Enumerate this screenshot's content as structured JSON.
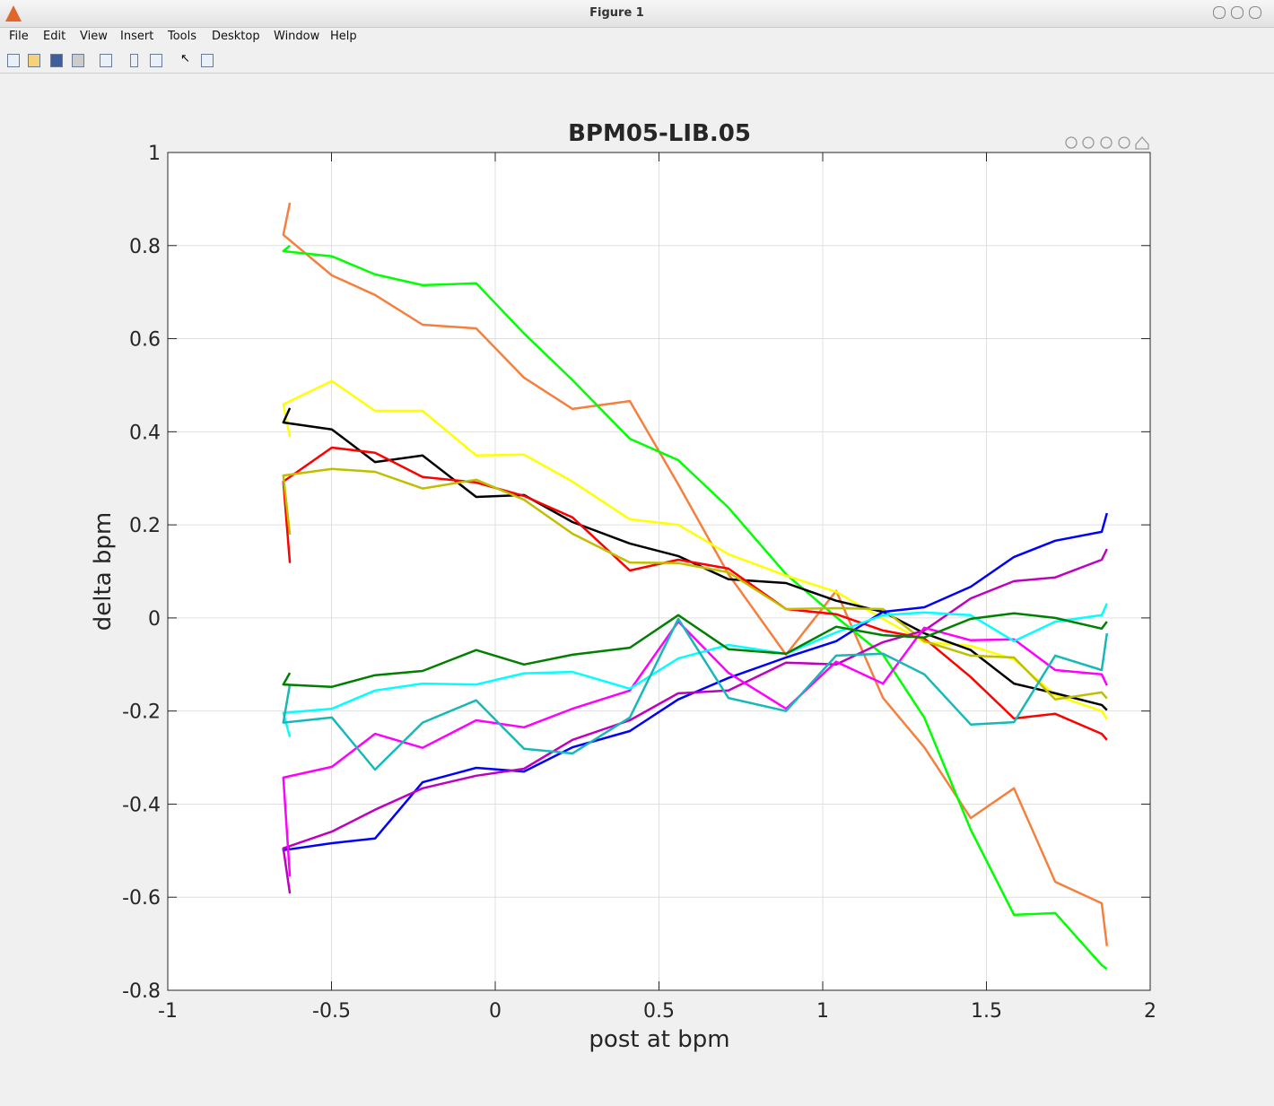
{
  "window": {
    "title": "Figure 1",
    "menu": [
      "File",
      "Edit",
      "View",
      "Insert",
      "Tools",
      "Desktop",
      "Window",
      "Help"
    ]
  },
  "chart_data": {
    "type": "line",
    "title": "BPM05-LIB.05",
    "x_label": "post at bpm",
    "y_label": "delta bpm",
    "x": [
      -0.627,
      -0.647,
      -0.499,
      -0.367,
      -0.222,
      -0.058,
      0.088,
      0.236,
      0.411,
      0.559,
      0.712,
      0.888,
      1.041,
      1.184,
      1.31,
      1.452,
      1.584,
      1.71,
      1.852,
      1.868
    ],
    "xlim": [
      -1,
      2
    ],
    "xticks": [
      -1,
      -0.5,
      0,
      0.5,
      1,
      1.5,
      2
    ],
    "ylim": [
      -0.8,
      1
    ],
    "yticks": [
      -0.8,
      -0.6,
      -0.4,
      -0.2,
      0,
      0.2,
      0.4,
      0.6,
      0.8,
      1
    ],
    "grid": true,
    "series": [
      {
        "color": "#f5803e",
        "values": [
          0.892,
          0.823,
          0.736,
          0.694,
          0.63,
          0.622,
          0.516,
          0.449,
          0.466,
          0.287,
          0.094,
          -0.079,
          0.058,
          -0.172,
          -0.278,
          -0.43,
          -0.366,
          -0.567,
          -0.613,
          -0.705
        ]
      },
      {
        "color": "#00ff00",
        "values": [
          0.8,
          0.788,
          0.777,
          0.738,
          0.715,
          0.719,
          0.611,
          0.511,
          0.385,
          0.339,
          0.237,
          0.094,
          0.002,
          -0.079,
          -0.214,
          -0.455,
          -0.638,
          -0.634,
          -0.746,
          -0.754
        ]
      },
      {
        "color": "#ffff00",
        "values": [
          0.389,
          0.459,
          0.509,
          0.445,
          0.445,
          0.349,
          0.351,
          0.293,
          0.212,
          0.2,
          0.137,
          0.091,
          0.056,
          -0.002,
          -0.052,
          -0.06,
          -0.089,
          -0.166,
          -0.2,
          -0.218
        ]
      },
      {
        "color": "#000000",
        "values": [
          0.451,
          0.42,
          0.405,
          0.335,
          0.349,
          0.26,
          0.264,
          0.206,
          0.16,
          0.133,
          0.083,
          0.075,
          0.037,
          0.013,
          -0.033,
          -0.069,
          -0.141,
          -0.162,
          -0.187,
          -0.198
        ]
      },
      {
        "color": "#ff0000",
        "values": [
          0.118,
          0.293,
          0.366,
          0.355,
          0.303,
          0.291,
          0.262,
          0.216,
          0.102,
          0.125,
          0.106,
          0.019,
          0.008,
          -0.027,
          -0.044,
          -0.127,
          -0.216,
          -0.206,
          -0.249,
          -0.262
        ]
      },
      {
        "color": "#bfbf00",
        "values": [
          0.179,
          0.306,
          0.32,
          0.314,
          0.278,
          0.297,
          0.254,
          0.181,
          0.119,
          0.118,
          0.098,
          0.019,
          0.021,
          0.019,
          -0.05,
          -0.081,
          -0.085,
          -0.175,
          -0.16,
          -0.173
        ]
      },
      {
        "color": "#0000ff",
        "values": [
          -0.495,
          -0.499,
          -0.484,
          -0.474,
          -0.353,
          -0.322,
          -0.33,
          -0.278,
          -0.243,
          -0.175,
          -0.129,
          -0.085,
          -0.05,
          0.013,
          0.023,
          0.067,
          0.131,
          0.166,
          0.185,
          0.225
        ]
      },
      {
        "color": "#bf00bf",
        "values": [
          -0.592,
          -0.495,
          -0.459,
          -0.412,
          -0.366,
          -0.339,
          -0.324,
          -0.262,
          -0.22,
          -0.162,
          -0.156,
          -0.096,
          -0.1,
          -0.052,
          -0.027,
          0.042,
          0.079,
          0.087,
          0.125,
          0.148
        ]
      },
      {
        "color": "#ff00ff",
        "values": [
          -0.555,
          -0.343,
          -0.32,
          -0.249,
          -0.279,
          -0.22,
          -0.235,
          -0.195,
          -0.156,
          -0.008,
          -0.118,
          -0.195,
          -0.094,
          -0.141,
          -0.021,
          -0.048,
          -0.046,
          -0.112,
          -0.121,
          -0.145
        ]
      },
      {
        "color": "#00ffff",
        "values": [
          -0.256,
          -0.204,
          -0.195,
          -0.156,
          -0.141,
          -0.143,
          -0.119,
          -0.116,
          -0.152,
          -0.087,
          -0.058,
          -0.077,
          -0.031,
          0.006,
          0.012,
          0.006,
          -0.05,
          -0.008,
          0.006,
          0.031
        ]
      },
      {
        "color": "#17b8b8",
        "values": [
          -0.143,
          -0.225,
          -0.214,
          -0.326,
          -0.225,
          -0.177,
          -0.281,
          -0.291,
          -0.214,
          -0.002,
          -0.172,
          -0.2,
          -0.081,
          -0.077,
          -0.121,
          -0.229,
          -0.224,
          -0.081,
          -0.112,
          -0.033
        ]
      },
      {
        "color": "#007f00",
        "values": [
          -0.118,
          -0.143,
          -0.148,
          -0.123,
          -0.114,
          -0.069,
          -0.1,
          -0.079,
          -0.064,
          0.006,
          -0.067,
          -0.077,
          -0.019,
          -0.037,
          -0.042,
          -0.002,
          0.01,
          0.0,
          -0.023,
          -0.008
        ]
      }
    ]
  }
}
